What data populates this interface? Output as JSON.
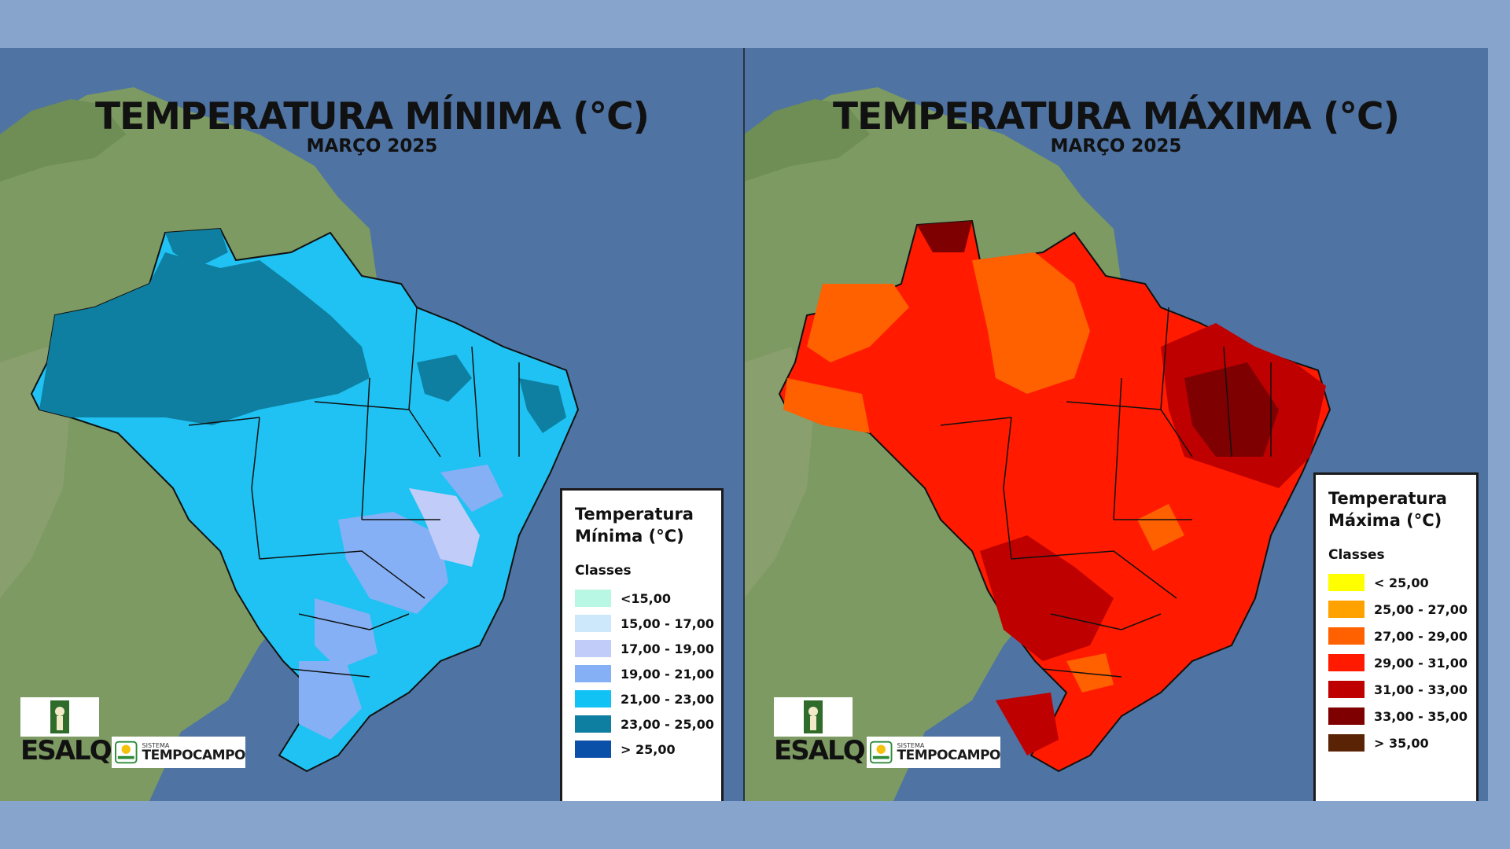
{
  "maps": [
    {
      "id": "min",
      "title": "TEMPERATURA MÍNIMA (°C)",
      "subtitle": "MARÇO 2025",
      "legend": {
        "title_line1": "Temperatura",
        "title_line2": "Mínima (°C)",
        "classes_label": "Classes",
        "classes": [
          {
            "label": "<15,00",
            "color": "#b7f7e3"
          },
          {
            "label": "15,00 - 17,00",
            "color": "#cde7fb"
          },
          {
            "label": "17,00 - 19,00",
            "color": "#c1cdf8"
          },
          {
            "label": "19,00 - 21,00",
            "color": "#86b0f5"
          },
          {
            "label": "21,00 - 23,00",
            "color": "#11c3f5"
          },
          {
            "label": "23,00 - 25,00",
            "color": "#0e7fa1"
          },
          {
            "label": "> 25,00",
            "color": "#0a4fa8"
          }
        ]
      },
      "dominant_class_color": "#1fc2f2"
    },
    {
      "id": "max",
      "title": "TEMPERATURA MÁXIMA (°C)",
      "subtitle": "MARÇO 2025",
      "legend": {
        "title_line1": "Temperatura",
        "title_line2": "Máxima (°C)",
        "classes_label": "Classes",
        "classes": [
          {
            "label": "< 25,00",
            "color": "#ffff00"
          },
          {
            "label": "25,00 - 27,00",
            "color": "#ffa200"
          },
          {
            "label": "27,00 - 29,00",
            "color": "#ff6000"
          },
          {
            "label": "29,00 - 31,00",
            "color": "#ff1a00"
          },
          {
            "label": "31,00 - 33,00",
            "color": "#bf0000"
          },
          {
            "label": "33,00 - 35,00",
            "color": "#7f0000"
          },
          {
            "label": "> 35,00",
            "color": "#5a2305"
          }
        ]
      },
      "dominant_class_color": "#ff1a00"
    }
  ],
  "logos": {
    "esalq": "ESALQ",
    "tc_small": "SISTEMA",
    "tc_big": "TEMPOCAMPO"
  },
  "colors": {
    "page_background": "#87a5cc",
    "ocean": "#4f73a2",
    "land": "#7c9a62"
  }
}
